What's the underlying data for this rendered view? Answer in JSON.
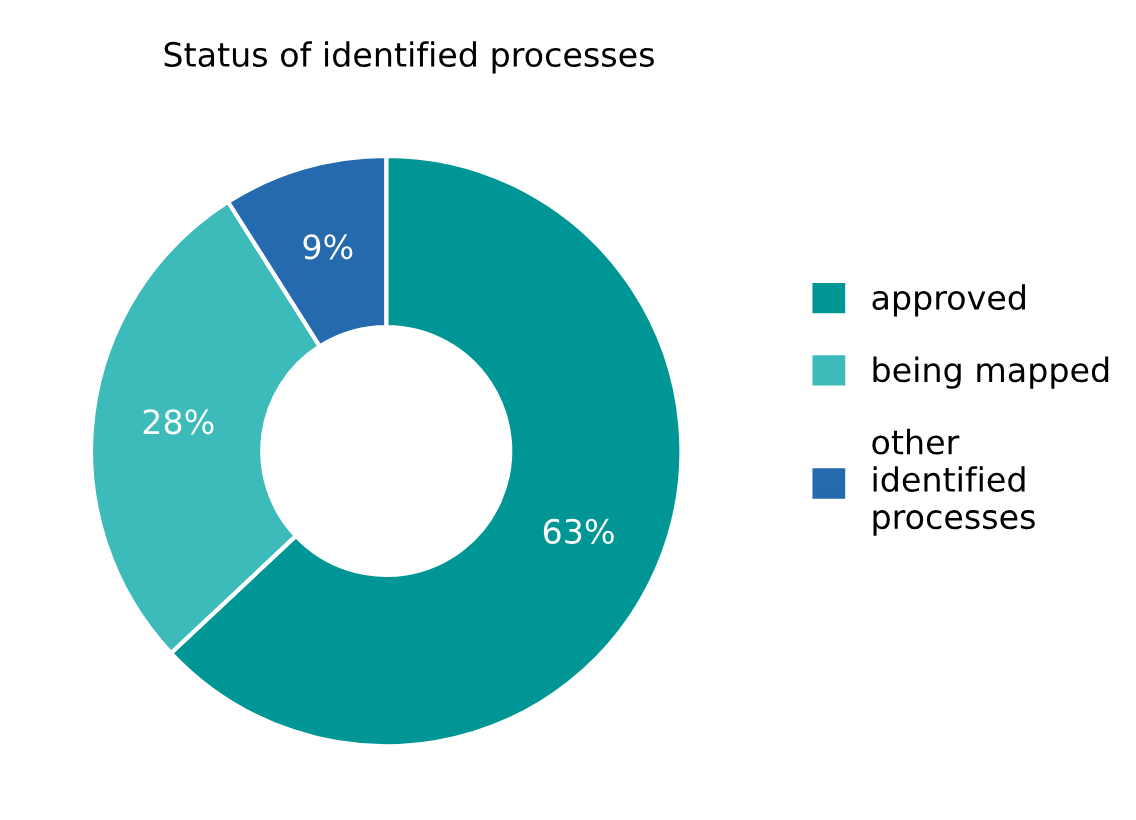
{
  "chart_data": {
    "type": "donut",
    "title": "Status of identified processes",
    "categories": [
      "approved",
      "being mapped",
      "other identified processes"
    ],
    "values": [
      63,
      28,
      9
    ],
    "colors": [
      "#009696",
      "#3dbaba",
      "#2569ae"
    ],
    "value_labels": [
      "63%",
      "28%",
      "9%"
    ],
    "legend": "right"
  }
}
